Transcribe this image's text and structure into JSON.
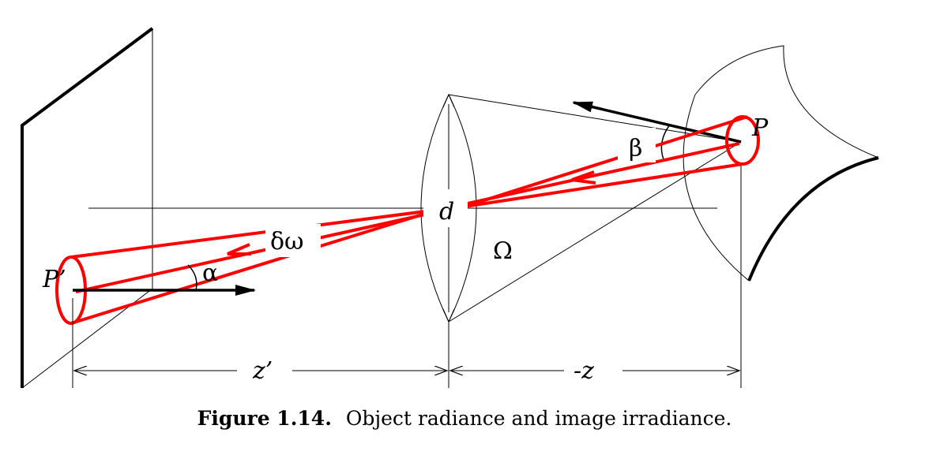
{
  "labels": {
    "P": "P",
    "P_prime": "P’",
    "d": "d",
    "omega_big": "Ω",
    "delta_omega": "δω",
    "alpha": "α",
    "beta": "β",
    "z_prime": "z’",
    "minus_z": "-z"
  },
  "caption": {
    "number": "Figure 1.14.",
    "text": "Object radiance and image irradiance."
  },
  "colors": {
    "ray": "#ff0000",
    "line": "#000000",
    "background": "#ffffff"
  }
}
